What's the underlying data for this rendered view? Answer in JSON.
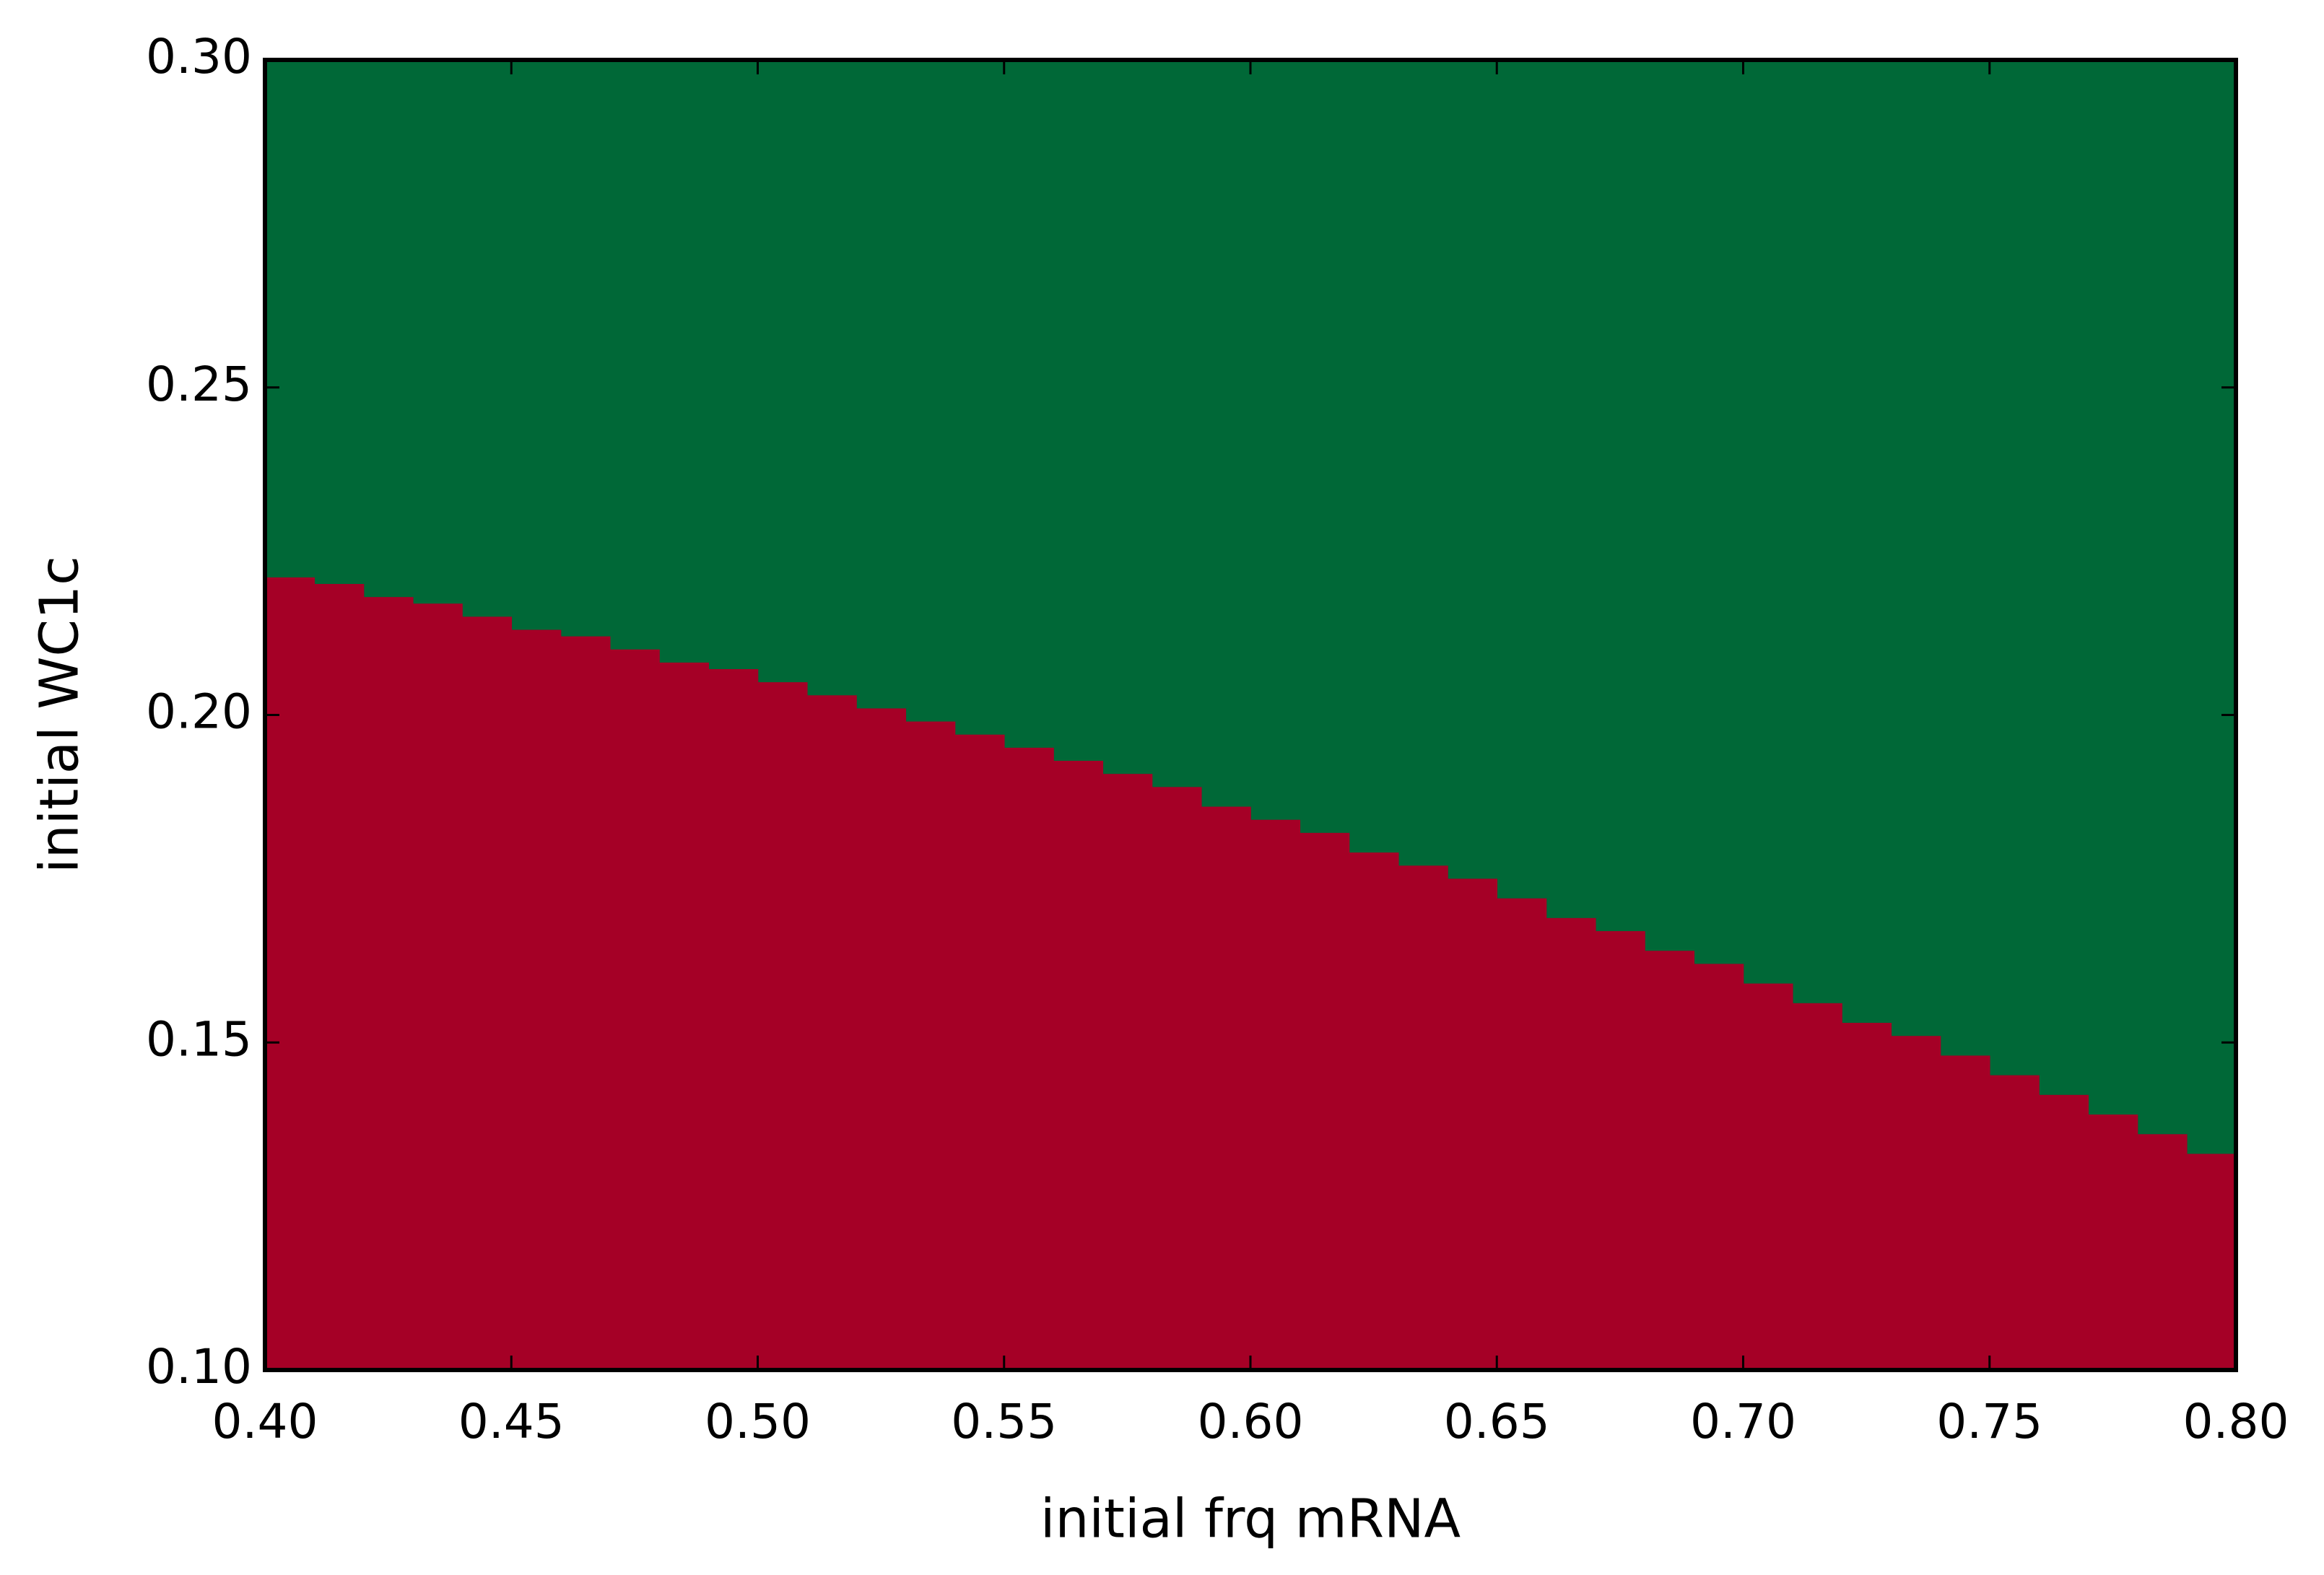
{
  "chart_data": {
    "type": "region",
    "x_label": "initial frq mRNA",
    "y_label": "initial WC1c",
    "x": [
      0.4,
      0.41,
      0.42,
      0.43,
      0.44,
      0.45,
      0.46,
      0.47,
      0.48,
      0.49,
      0.5,
      0.51,
      0.52,
      0.53,
      0.54,
      0.55,
      0.56,
      0.57,
      0.58,
      0.59,
      0.6,
      0.61,
      0.62,
      0.63,
      0.64,
      0.65,
      0.66,
      0.67,
      0.68,
      0.69,
      0.7,
      0.71,
      0.72,
      0.73,
      0.74,
      0.75,
      0.76,
      0.77,
      0.78,
      0.79
    ],
    "values": [
      0.221,
      0.22,
      0.218,
      0.217,
      0.215,
      0.213,
      0.212,
      0.21,
      0.208,
      0.207,
      0.205,
      0.203,
      0.201,
      0.199,
      0.197,
      0.195,
      0.193,
      0.191,
      0.189,
      0.186,
      0.184,
      0.182,
      0.179,
      0.177,
      0.175,
      0.172,
      0.169,
      0.167,
      0.164,
      0.162,
      0.159,
      0.156,
      0.153,
      0.151,
      0.148,
      0.145,
      0.142,
      0.139,
      0.136,
      0.133
    ],
    "x_step": 0.01,
    "below_color": "#a50026",
    "above_color": "#006837",
    "xlim": [
      0.4,
      0.8
    ],
    "ylim": [
      0.1,
      0.3
    ],
    "xticks": [
      {
        "value": 0.4,
        "label": "0.40"
      },
      {
        "value": 0.45,
        "label": "0.45"
      },
      {
        "value": 0.5,
        "label": "0.50"
      },
      {
        "value": 0.55,
        "label": "0.55"
      },
      {
        "value": 0.6,
        "label": "0.60"
      },
      {
        "value": 0.65,
        "label": "0.65"
      },
      {
        "value": 0.7,
        "label": "0.70"
      },
      {
        "value": 0.75,
        "label": "0.75"
      },
      {
        "value": 0.8,
        "label": "0.80"
      }
    ],
    "yticks": [
      {
        "value": 0.1,
        "label": "0.10"
      },
      {
        "value": 0.15,
        "label": "0.15"
      },
      {
        "value": 0.2,
        "label": "0.20"
      },
      {
        "value": 0.25,
        "label": "0.25"
      },
      {
        "value": 0.3,
        "label": "0.30"
      }
    ],
    "grid": false
  }
}
